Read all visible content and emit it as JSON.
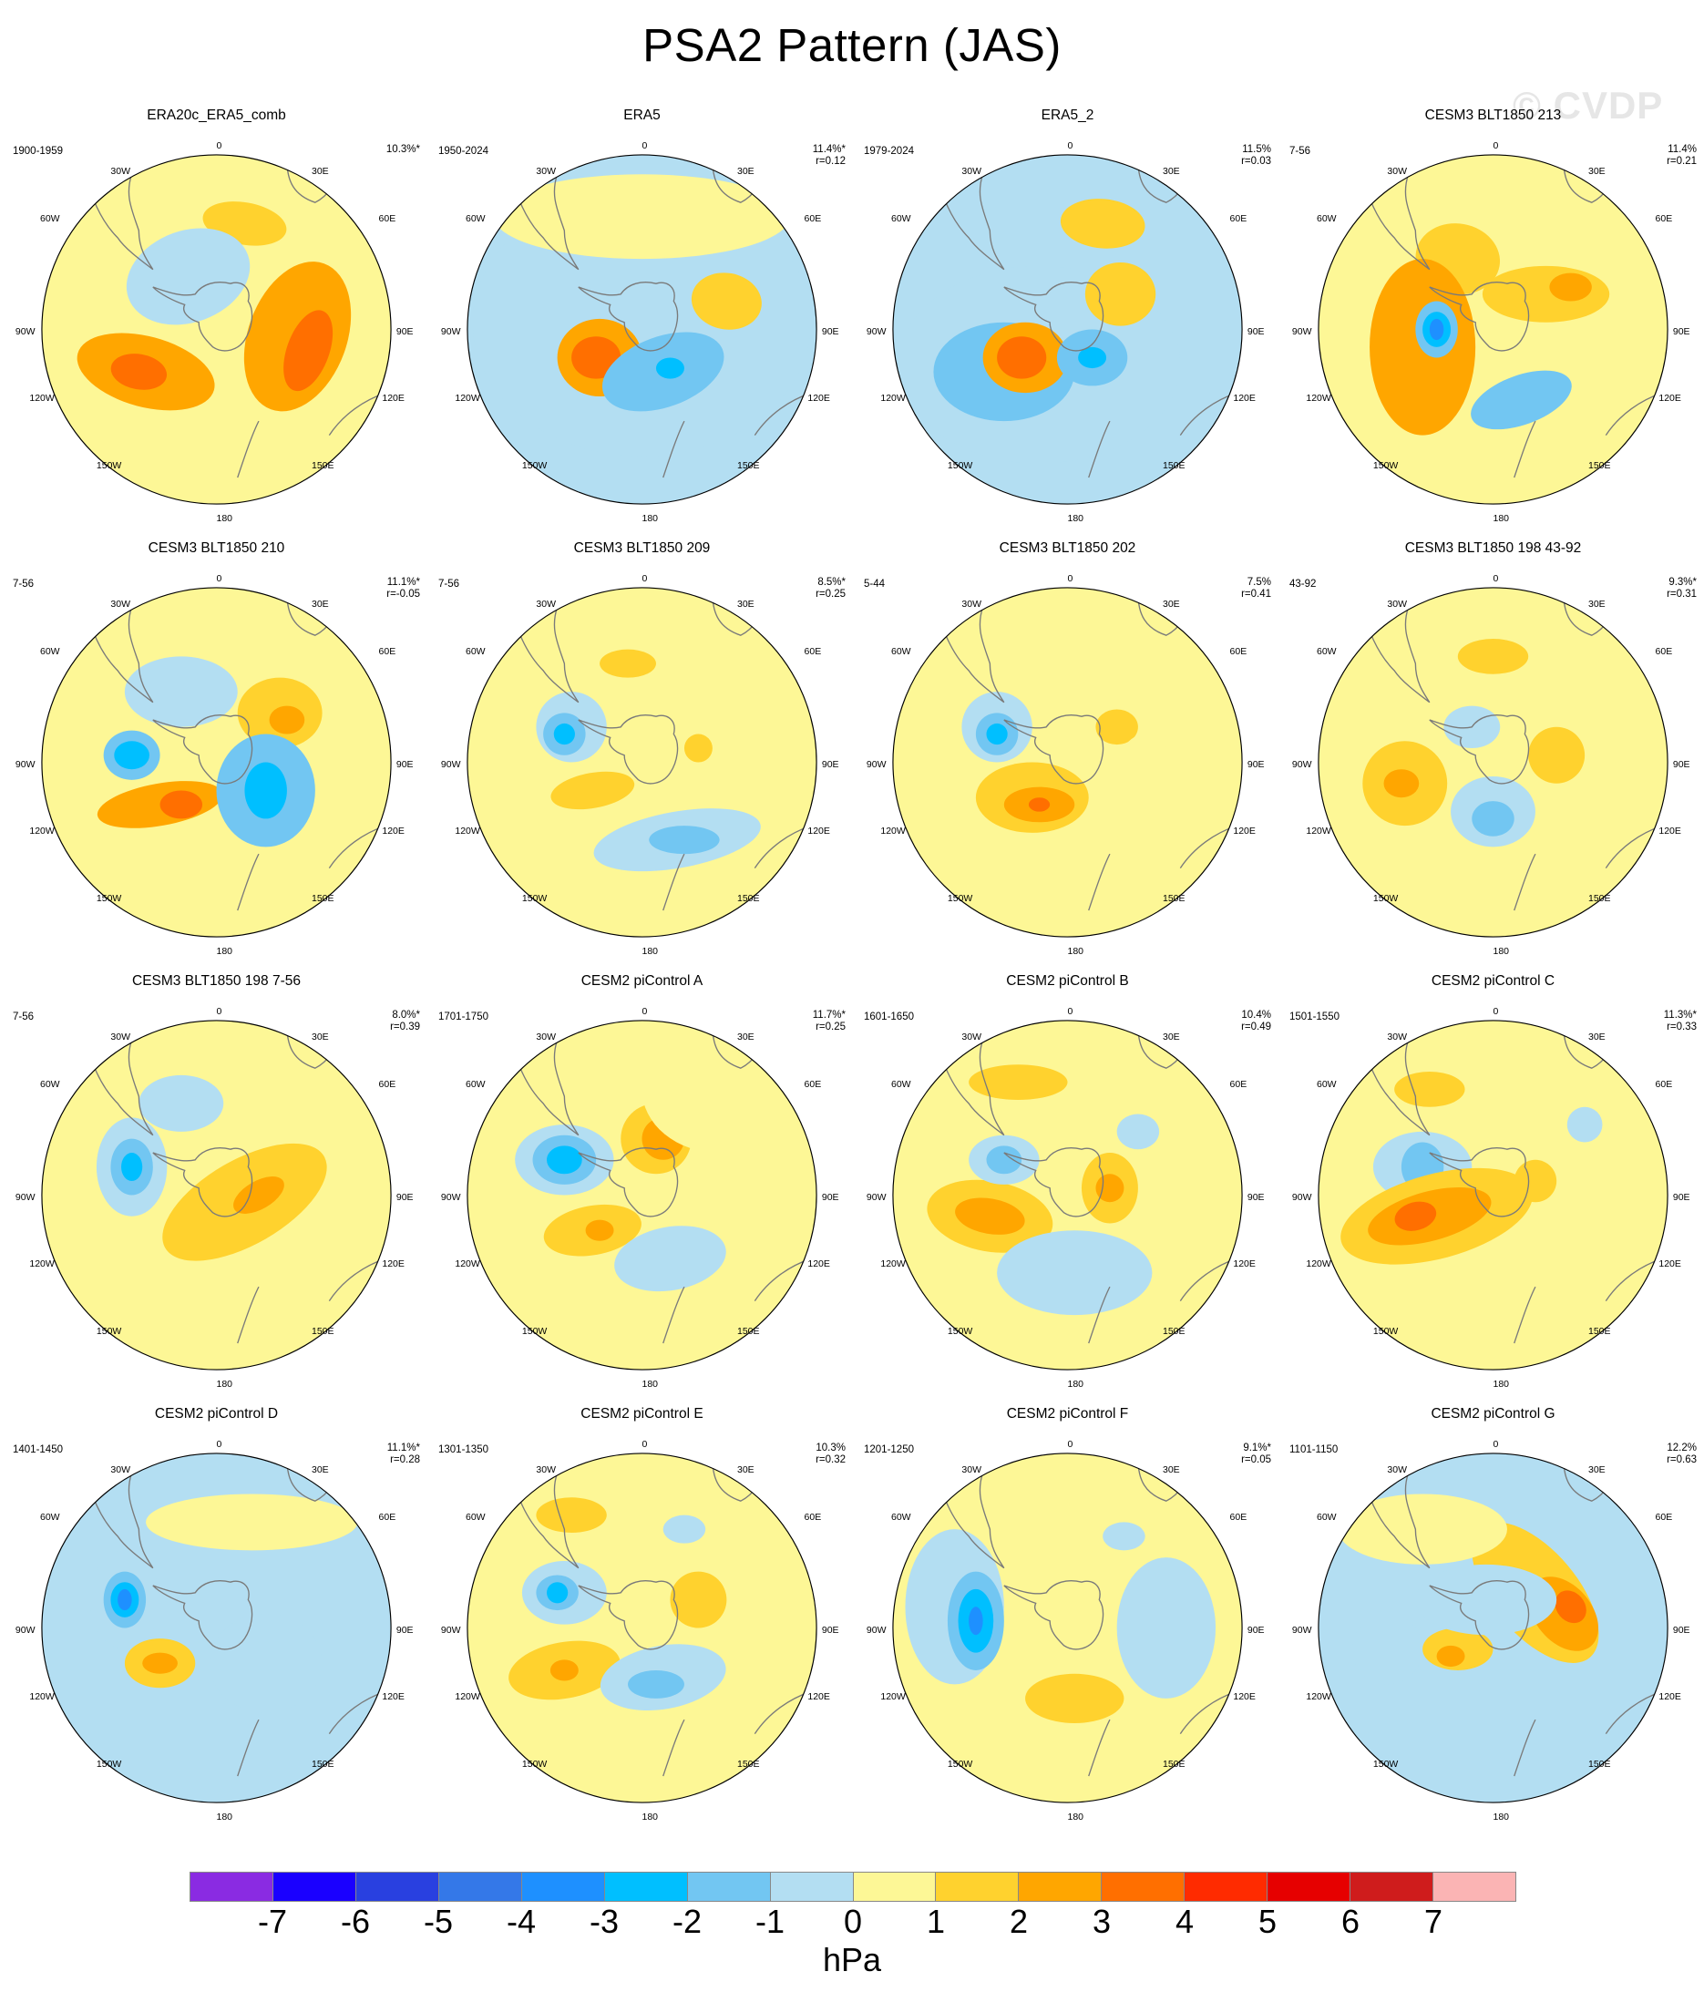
{
  "title": "PSA2 Pattern (JAS)",
  "watermark": "© CVDP",
  "map_labels": {
    "top": "0",
    "bottom": "180",
    "lon_30W": "30W",
    "lon_30E": "30E",
    "lon_60W": "60W",
    "lon_60E": "60E",
    "lon_90W": "90W",
    "lon_90E": "90E",
    "lon_120W": "120W",
    "lon_120E": "120E",
    "lon_150W": "150W",
    "lon_150E": "150E"
  },
  "panels": [
    {
      "title": "ERA20c_ERA5_comb",
      "years": "1900-1959",
      "pct": "10.3%*",
      "r": ""
    },
    {
      "title": "ERA5",
      "years": "1950-2024",
      "pct": "11.4%*",
      "r": "r=0.12"
    },
    {
      "title": "ERA5_2",
      "years": "1979-2024",
      "pct": "11.5%",
      "r": "r=0.03"
    },
    {
      "title": "CESM3 BLT1850 213",
      "years": "7-56",
      "pct": "11.4%",
      "r": "r=0.21"
    },
    {
      "title": "CESM3 BLT1850 210",
      "years": "7-56",
      "pct": "11.1%*",
      "r": "r=-0.05"
    },
    {
      "title": "CESM3 BLT1850 209",
      "years": "7-56",
      "pct": "8.5%*",
      "r": "r=0.25"
    },
    {
      "title": "CESM3 BLT1850 202",
      "years": "5-44",
      "pct": "7.5%",
      "r": "r=0.41"
    },
    {
      "title": "CESM3 BLT1850 198 43-92",
      "years": "43-92",
      "pct": "9.3%*",
      "r": "r=0.31"
    },
    {
      "title": "CESM3 BLT1850 198 7-56",
      "years": "7-56",
      "pct": "8.0%*",
      "r": "r=0.39"
    },
    {
      "title": "CESM2 piControl A",
      "years": "1701-1750",
      "pct": "11.7%*",
      "r": "r=0.25"
    },
    {
      "title": "CESM2 piControl B",
      "years": "1601-1650",
      "pct": "10.4%",
      "r": "r=0.49"
    },
    {
      "title": "CESM2 piControl C",
      "years": "1501-1550",
      "pct": "11.3%*",
      "r": "r=0.33"
    },
    {
      "title": "CESM2 piControl D",
      "years": "1401-1450",
      "pct": "11.1%*",
      "r": "r=0.28"
    },
    {
      "title": "CESM2 piControl E",
      "years": "1301-1350",
      "pct": "10.3%",
      "r": "r=0.32"
    },
    {
      "title": "CESM2 piControl F",
      "years": "1201-1250",
      "pct": "9.1%*",
      "r": "r=0.05"
    },
    {
      "title": "CESM2 piControl G",
      "years": "1101-1150",
      "pct": "12.2%",
      "r": "r=0.63"
    }
  ],
  "colorbar": {
    "ticks": [
      "-7",
      "-6",
      "-5",
      "-4",
      "-3",
      "-2",
      "-1",
      "0",
      "1",
      "2",
      "3",
      "4",
      "5",
      "6",
      "7"
    ],
    "colors": [
      "#8a2be2",
      "#1a00ff",
      "#2940e0",
      "#3478e8",
      "#1e90ff",
      "#00bfff",
      "#72c6f2",
      "#b3def2",
      "#fdf796",
      "#ffd22e",
      "#ffa600",
      "#ff6f00",
      "#ff2b00",
      "#e60000",
      "#cf1c1c",
      "#fbb4b4"
    ],
    "units": "hPa"
  }
}
